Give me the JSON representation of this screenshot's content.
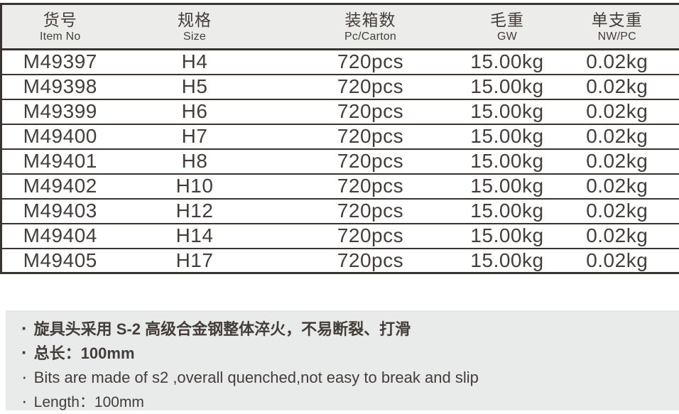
{
  "table": {
    "columns": [
      {
        "zh": "货号",
        "en": "Item No"
      },
      {
        "zh": "规格",
        "en": "Size"
      },
      {
        "zh": "装箱数",
        "en": "Pc/Carton"
      },
      {
        "zh": "毛重",
        "en": "GW"
      },
      {
        "zh": "单支重",
        "en": "NW/PC"
      }
    ],
    "rows": [
      {
        "item_no": "M49397",
        "size": "H4",
        "pc_carton": "720pcs",
        "gw": "15.00kg",
        "nw_pc": "0.02kg"
      },
      {
        "item_no": "M49398",
        "size": "H5",
        "pc_carton": "720pcs",
        "gw": "15.00kg",
        "nw_pc": "0.02kg"
      },
      {
        "item_no": "M49399",
        "size": "H6",
        "pc_carton": "720pcs",
        "gw": "15.00kg",
        "nw_pc": "0.02kg"
      },
      {
        "item_no": "M49400",
        "size": "H7",
        "pc_carton": "720pcs",
        "gw": "15.00kg",
        "nw_pc": "0.02kg"
      },
      {
        "item_no": "M49401",
        "size": "H8",
        "pc_carton": "720pcs",
        "gw": "15.00kg",
        "nw_pc": "0.02kg"
      },
      {
        "item_no": "M49402",
        "size": "H10",
        "pc_carton": "720pcs",
        "gw": "15.00kg",
        "nw_pc": "0.02kg"
      },
      {
        "item_no": "M49403",
        "size": "H12",
        "pc_carton": "720pcs",
        "gw": "15.00kg",
        "nw_pc": "0.02kg"
      },
      {
        "item_no": "M49404",
        "size": "H14",
        "pc_carton": "720pcs",
        "gw": "15.00kg",
        "nw_pc": "0.02kg"
      },
      {
        "item_no": "M49405",
        "size": "H17",
        "pc_carton": "720pcs",
        "gw": "15.00kg",
        "nw_pc": "0.02kg"
      }
    ]
  },
  "notes": {
    "bullet": "·",
    "items": [
      "旋具头采用 S-2 高级合金钢整体淬火，不易断裂、打滑",
      "总长：100mm",
      "Bits are made of s2 ,overall quenched,not easy to break and slip",
      "Length：100mm"
    ]
  },
  "colors": {
    "line": "#3a3431",
    "text": "#443d3a",
    "header-bg": "#ececea",
    "notes-bg": "#e9eaea"
  }
}
